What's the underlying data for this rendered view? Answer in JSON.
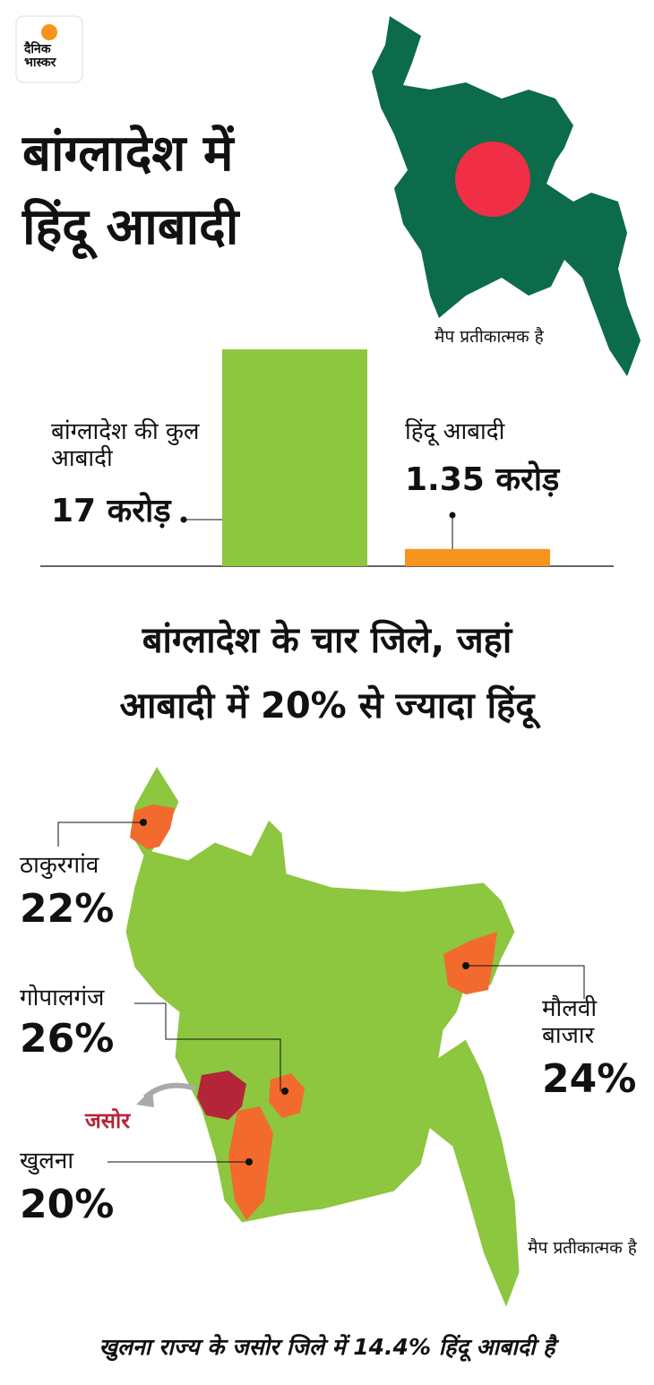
{
  "logo": {
    "line1": "दैनिक",
    "line2": "भास्कर"
  },
  "title": {
    "line1": "बांग्लादेश में",
    "line2": "हिंदू आबादी"
  },
  "top_map_note": "मैप प्रतीकात्मक है",
  "chart_data": {
    "type": "bar",
    "categories": [
      "बांग्लादेश की कुल आबादी",
      "हिंदू आबादी"
    ],
    "values": [
      17,
      1.35
    ],
    "value_labels": [
      "17 करोड़",
      "1.35 करोड़"
    ],
    "colors": [
      "#8dc63f",
      "#f7941d"
    ],
    "ylim": [
      0,
      17
    ]
  },
  "section_title": {
    "line1": "बांग्लादेश के चार जिले, जहां",
    "line2": "आबादी में 20% से ज्यादा हिंदू"
  },
  "districts": [
    {
      "name": "ठाकुरगांव",
      "value": 22,
      "label": "22%"
    },
    {
      "name": "गोपालगंज",
      "value": 26,
      "label": "26%"
    },
    {
      "name": "खुलना",
      "value": 20,
      "label": "20%"
    },
    {
      "name": "मौलवी बाजार",
      "value": 24,
      "label": "24%"
    }
  ],
  "jessore_label": "जसोर",
  "bottom_map_note": "मैप प्रतीकात्मक है",
  "footer": "खुलना राज्य के जसोर जिले में 14.4% हिंदू आबादी है"
}
